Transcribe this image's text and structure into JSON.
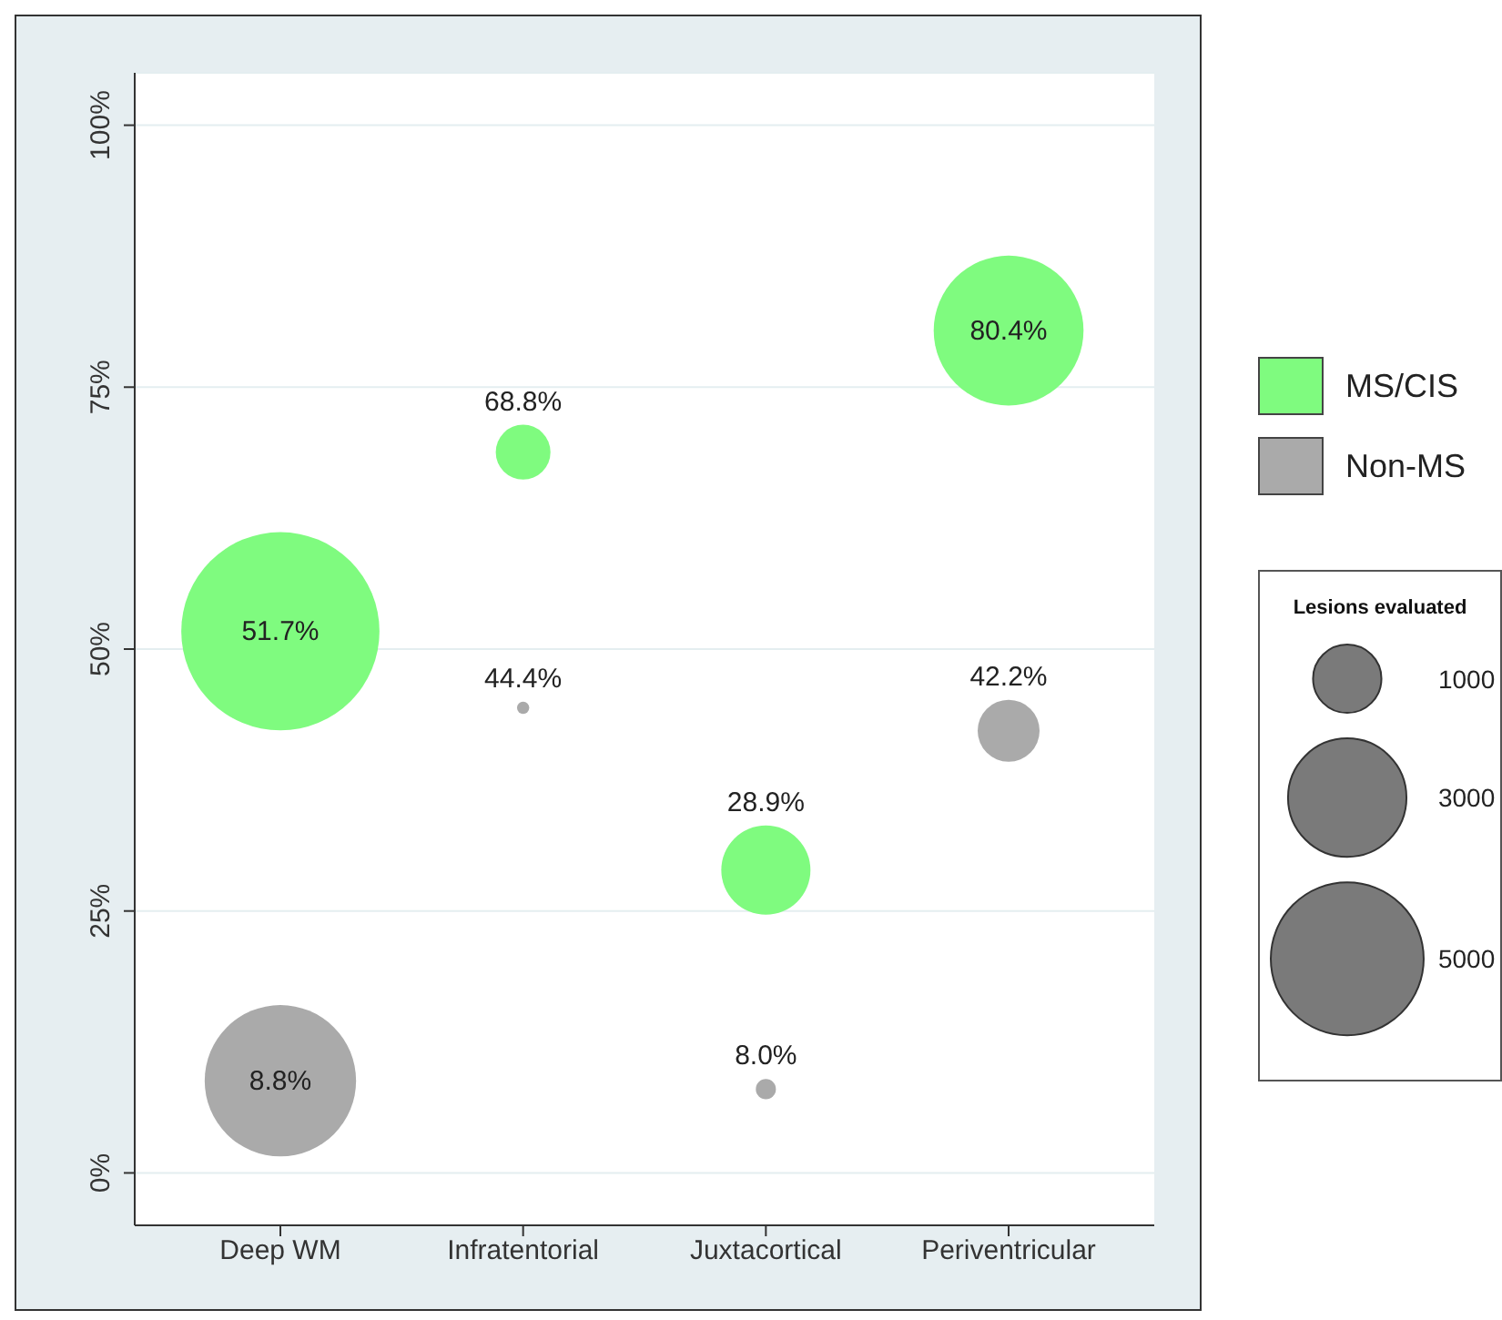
{
  "chart_data": {
    "type": "bubble",
    "categories": [
      "Deep WM",
      "Infratentorial",
      "Juxtacortical",
      "Periventricular"
    ],
    "series": [
      {
        "name": "MS/CIS",
        "color": "#7ffb7f",
        "values": [
          51.7,
          68.8,
          28.9,
          80.4
        ],
        "sizes": [
          8400,
          640,
          1700,
          4800
        ],
        "value_labels": [
          "51.7%",
          "68.8%",
          "28.9%",
          "80.4%"
        ]
      },
      {
        "name": "Non-MS",
        "color": "#aaaaaa",
        "values": [
          8.8,
          44.4,
          8.0,
          42.2
        ],
        "sizes": [
          4900,
          32,
          86,
          820
        ],
        "value_labels": [
          "8.8%",
          "44.4%",
          "8.0%",
          "42.2%"
        ]
      }
    ],
    "ylim": [
      -5,
      105
    ],
    "yticks": [
      {
        "value": 0,
        "label": "0%"
      },
      {
        "value": 25,
        "label": "25%"
      },
      {
        "value": 50,
        "label": "50%"
      },
      {
        "value": 75,
        "label": "75%"
      },
      {
        "value": 100,
        "label": "100%"
      }
    ],
    "grid": "y",
    "legend": "right",
    "legend_title": "Lesions evaluated",
    "size_legend": [
      1000,
      3000,
      5000
    ]
  }
}
